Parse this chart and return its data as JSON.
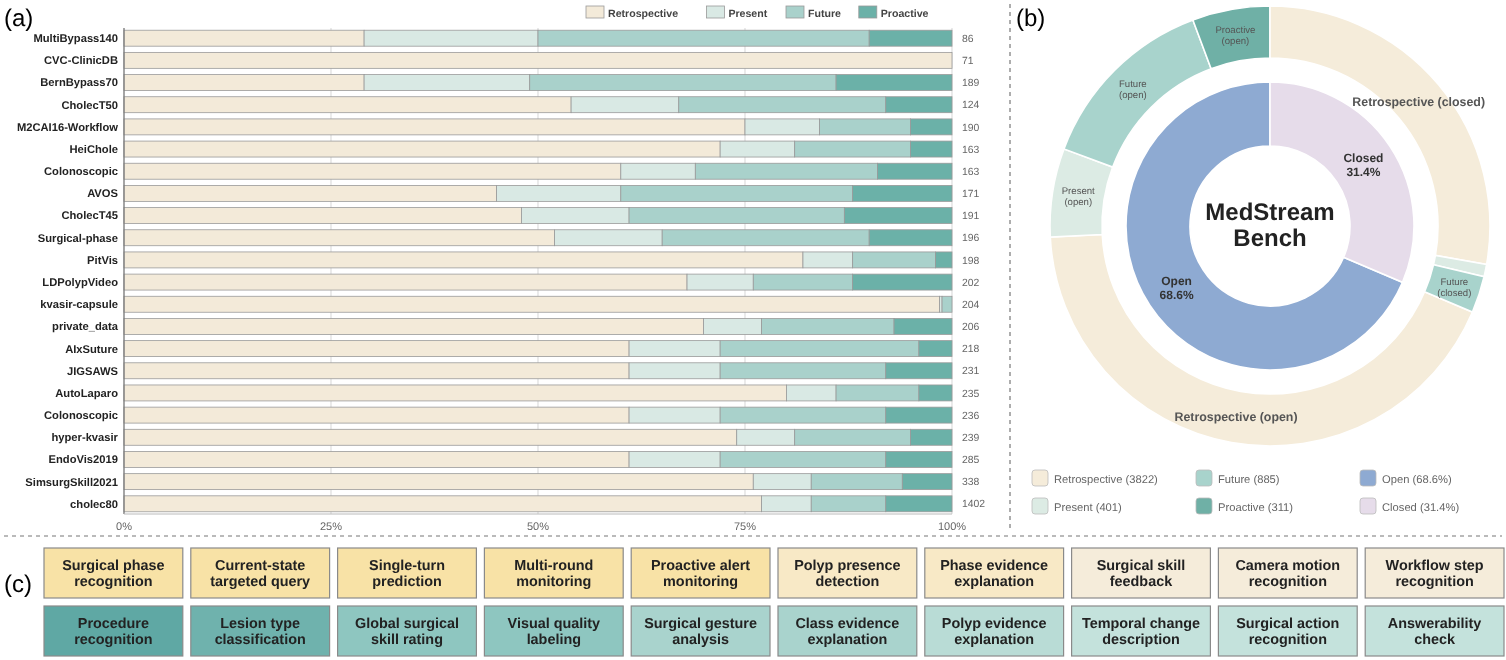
{
  "chart_data": [
    {
      "type": "bar",
      "title": "(a)",
      "orientation": "horizontal",
      "stacked": true,
      "legend": "top right",
      "grid": "x",
      "categories": [
        "MultiBypass140",
        "CVC-ClinicDB",
        "BernBypass70",
        "CholecT50",
        "M2CAI16-Workflow",
        "HeiChole",
        "Colonoscopic",
        "AVOS",
        "CholecT45",
        "Surgical-phase",
        "PitVis",
        "LDPolypVideo",
        "kvasir-capsule",
        "private_data",
        "AIxSuture",
        "JIGSAWS",
        "AutoLaparo",
        "Colonoscopic",
        "hyper-kvasir",
        "EndoVis2019",
        "SimsurgSkill2021",
        "cholec80"
      ],
      "xlim": [
        0,
        100
      ],
      "xticks": [
        {
          "value": 0,
          "label": "0%"
        },
        {
          "value": 25,
          "label": "25%"
        },
        {
          "value": 50,
          "label": "50%"
        },
        {
          "value": 75,
          "label": "75%"
        },
        {
          "value": 100,
          "label": "100%"
        }
      ],
      "series": [
        {
          "name": "Retrospective",
          "color": "#f3ead9",
          "values": [
            29,
            100,
            29,
            54,
            75,
            72,
            60,
            45,
            48,
            52,
            82,
            68,
            98.5,
            70,
            61,
            61,
            80,
            61,
            74,
            61,
            76,
            77
          ]
        },
        {
          "name": "Present",
          "color": "#d9e9e4",
          "values": [
            21,
            0,
            20,
            13,
            9,
            9,
            9,
            15,
            13,
            13,
            6,
            8,
            0.3,
            7,
            11,
            11,
            6,
            11,
            7,
            11,
            7,
            6
          ]
        },
        {
          "name": "Future",
          "color": "#a9d1cb",
          "values": [
            40,
            0,
            37,
            25,
            11,
            14,
            22,
            28,
            26,
            25,
            10,
            12,
            1.2,
            16,
            24,
            20,
            10,
            20,
            14,
            20,
            11,
            9
          ]
        },
        {
          "name": "Proactive",
          "color": "#6bb1a8",
          "values": [
            10,
            0,
            14,
            8,
            5,
            5,
            9,
            12,
            13,
            10,
            2,
            12,
            0,
            7,
            4,
            8,
            4,
            8,
            5,
            8,
            6,
            8
          ]
        }
      ],
      "annotations": [
        "86",
        "71",
        "189",
        "124",
        "190",
        "163",
        "163",
        "171",
        "191",
        "196",
        "198",
        "202",
        "204",
        "206",
        "218",
        "231",
        "235",
        "236",
        "239",
        "285",
        "338",
        "1402"
      ]
    },
    {
      "type": "donut",
      "title": "(b)",
      "categories": [
        "Retrospective (open)",
        "Present (open)",
        "Future (open)",
        "Proactive (open)",
        "Retrospective (closed)",
        null,
        "Future (closed)"
      ],
      "values": [
        42.8,
        6.5,
        13.6,
        5.7,
        27.8,
        0.9,
        2.7
      ],
      "colors": [
        "#f5ecda",
        "#dcebe4",
        "#a8d3cc",
        "#6fb0a6",
        "#f5ecda",
        "#dcebe4",
        "#a8d3cc"
      ],
      "annotations": [
        "Retrospective (3822)",
        "Present (401)",
        "Future (885)",
        "Proactive (311)"
      ]
    },
    {
      "type": "donut",
      "categories": [
        "Open",
        "Closed"
      ],
      "values": [
        68.6,
        31.4
      ],
      "colors": [
        "#8eaad2",
        "#e6dcea"
      ],
      "value_labels": [
        "68.6%",
        "31.4%"
      ],
      "annotations": [
        "MedStream Bench",
        "Open (68.6%)",
        "Closed (31.4%)"
      ]
    },
    {
      "type": "other",
      "title": "(c)",
      "categories": [
        "Surgical phase recognition",
        "Current-state targeted query",
        "Single-turn prediction",
        "Multi-round monitoring",
        "Proactive alert monitoring",
        "Polyp presence detection",
        "Phase evidence explanation",
        "Surgical skill feedback",
        "Camera motion recognition",
        "Workflow step recognition",
        "Procedure recognition",
        "Lesion type classification",
        "Global surgical skill rating",
        "Visual quality labeling",
        "Surgical gesture analysis",
        "Class evidence explanation",
        "Polyp evidence explanation",
        "Temporal change description",
        "Surgical action recognition",
        "Answerability check"
      ],
      "colors": [
        "#f8e2a6",
        "#f8e2a6",
        "#f8e2a6",
        "#f8e2a6",
        "#f8e2a6",
        "#f8e9c6",
        "#f8e9c6",
        "#f5ecda",
        "#f5ecda",
        "#f5ecda",
        "#5fa8a4",
        "#6fb2ad",
        "#8ec6c0",
        "#8ec6c0",
        "#a9d3cd",
        "#a9d3cd",
        "#b9dcd6",
        "#c4e2dc",
        "#c4e2dc",
        "#c4e2dc"
      ]
    }
  ]
}
